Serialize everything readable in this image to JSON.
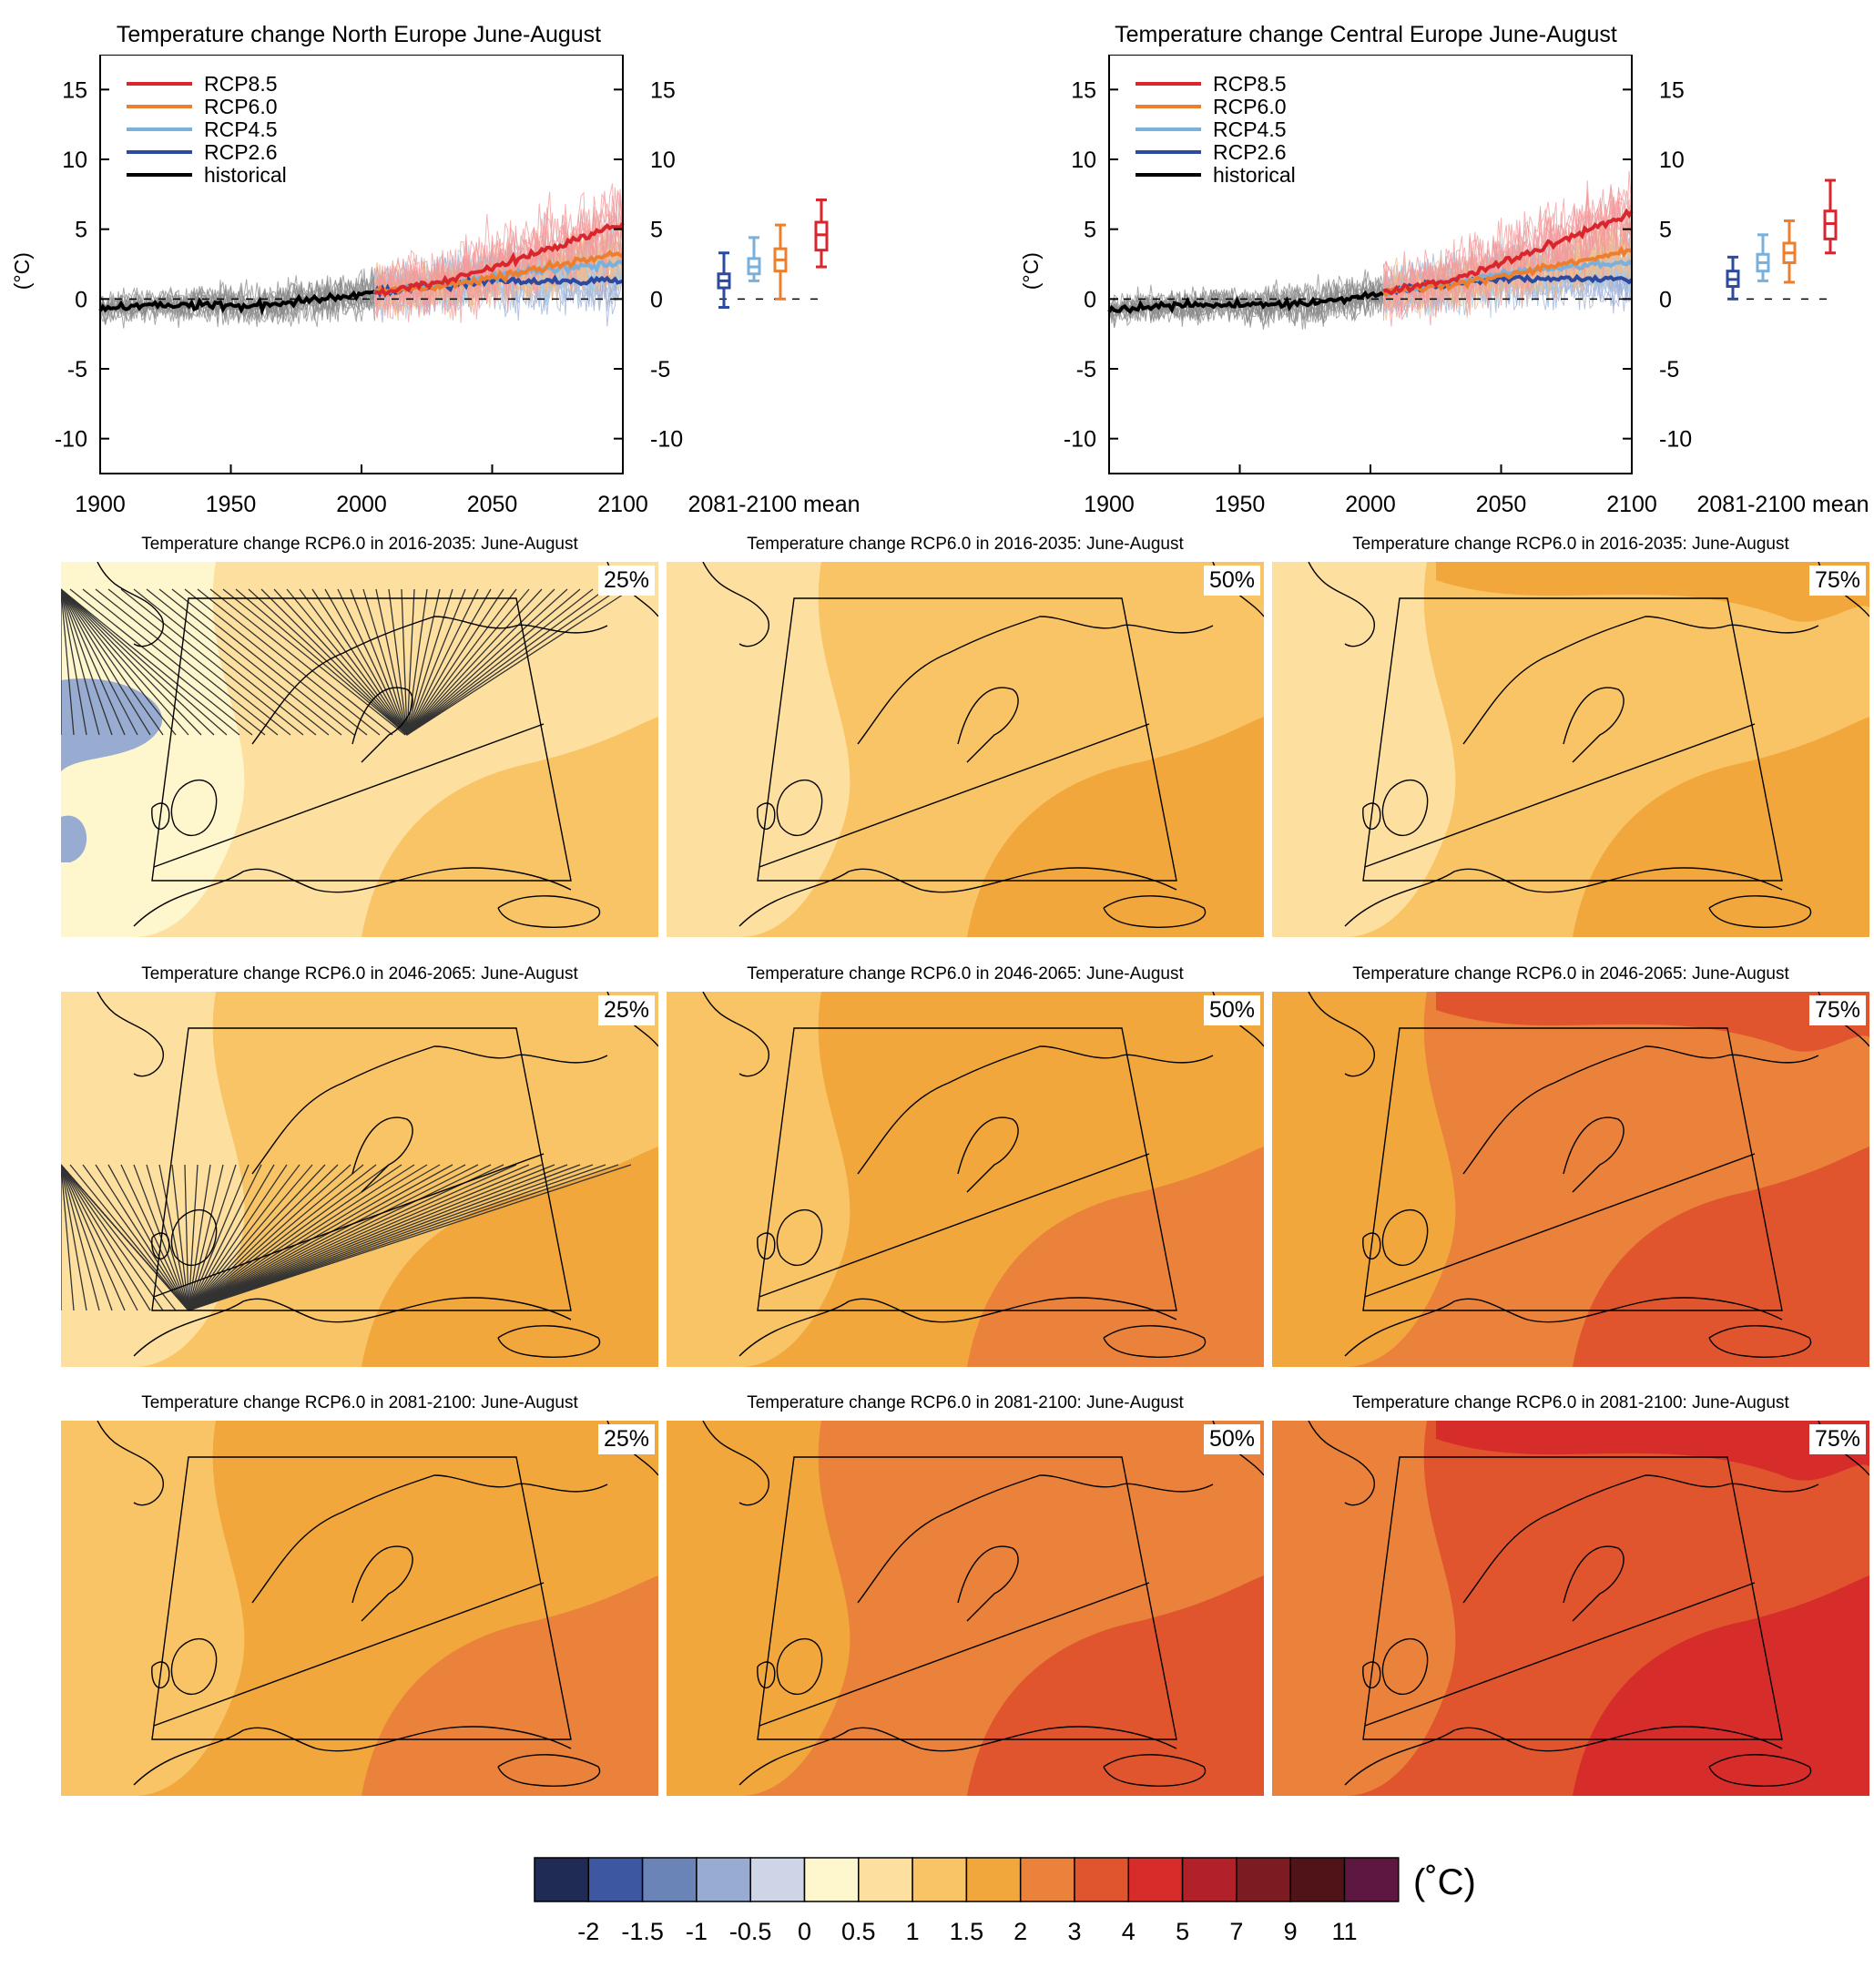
{
  "timeseries": [
    {
      "title": "Temperature change North Europe June-August",
      "ylabel": "(°C)",
      "mean_label": "2081-2100 mean",
      "yticks": [
        "15",
        "10",
        "5",
        "0",
        "-5",
        "-10"
      ],
      "xticks": [
        "1900",
        "1950",
        "2000",
        "2050",
        "2100"
      ],
      "legend": [
        "RCP8.5",
        "RCP6.0",
        "RCP4.5",
        "RCP2.6",
        "historical"
      ]
    },
    {
      "title": "Temperature change Central Europe June-August",
      "ylabel": "(°C)",
      "mean_label": "2081-2100 mean",
      "yticks": [
        "15",
        "10",
        "5",
        "0",
        "-5",
        "-10"
      ],
      "xticks": [
        "1900",
        "1950",
        "2000",
        "2050",
        "2100"
      ],
      "legend": [
        "RCP8.5",
        "RCP6.0",
        "RCP4.5",
        "RCP2.6",
        "historical"
      ]
    }
  ],
  "maps": {
    "titles": [
      "Temperature change RCP6.0 in 2016-2035: June-August",
      "Temperature change RCP6.0 in 2046-2065: June-August",
      "Temperature change RCP6.0 in 2081-2100: June-August"
    ],
    "percentiles": [
      "25%",
      "50%",
      "75%"
    ]
  },
  "colorbar": {
    "unit": "(˚C)",
    "labels": [
      "-2",
      "-1.5",
      "-1",
      "-0.5",
      "0",
      "0.5",
      "1",
      "1.5",
      "2",
      "3",
      "4",
      "5",
      "7",
      "9",
      "11"
    ],
    "colors": [
      "#1f2a55",
      "#3d58a0",
      "#6a84b8",
      "#98acd2",
      "#cdd5e6",
      "#fef6cc",
      "#fde0a0",
      "#f9c465",
      "#f1a73c",
      "#ea823b",
      "#e0552d",
      "#d62d2b",
      "#b2212a",
      "#7d1b22",
      "#501418",
      "#5e1741"
    ]
  },
  "chart_data": [
    {
      "type": "line",
      "title": "Temperature change North Europe June-August",
      "ylabel": "(°C)",
      "xlim": [
        1900,
        2100
      ],
      "ylim": [
        -12.5,
        17.5
      ],
      "series": [
        {
          "name": "historical",
          "color": "#000000",
          "x": [
            1900,
            1920,
            1940,
            1960,
            1980,
            2000,
            2005
          ],
          "values": [
            -0.7,
            -0.4,
            -0.4,
            -0.5,
            -0.1,
            0.3,
            0.5
          ]
        },
        {
          "name": "RCP2.6",
          "color": "#2b4aa0",
          "x": [
            2005,
            2030,
            2050,
            2075,
            2100
          ],
          "values": [
            0.5,
            1.0,
            1.3,
            1.3,
            1.3
          ]
        },
        {
          "name": "RCP4.5",
          "color": "#7ab0dc",
          "x": [
            2005,
            2030,
            2050,
            2075,
            2100
          ],
          "values": [
            0.5,
            1.0,
            1.6,
            2.2,
            2.5
          ]
        },
        {
          "name": "RCP6.0",
          "color": "#ec7f2e",
          "x": [
            2005,
            2030,
            2050,
            2075,
            2100
          ],
          "values": [
            0.5,
            0.9,
            1.5,
            2.4,
            3.2
          ]
        },
        {
          "name": "RCP8.5",
          "color": "#d8262c",
          "x": [
            2005,
            2030,
            2050,
            2075,
            2100
          ],
          "values": [
            0.5,
            1.2,
            2.3,
            3.8,
            5.4
          ]
        }
      ],
      "boxes_2081_2100": [
        {
          "name": "RCP2.6",
          "min": -0.6,
          "q1": 0.8,
          "median": 1.3,
          "q3": 1.8,
          "max": 3.3
        },
        {
          "name": "RCP4.5",
          "min": 1.3,
          "q1": 1.8,
          "median": 2.3,
          "q3": 2.9,
          "max": 4.4
        },
        {
          "name": "RCP6.0",
          "min": 0.0,
          "q1": 2.0,
          "median": 2.8,
          "q3": 3.6,
          "max": 5.3
        },
        {
          "name": "RCP8.5",
          "min": 2.3,
          "q1": 3.5,
          "median": 4.6,
          "q3": 5.5,
          "max": 7.1
        }
      ]
    },
    {
      "type": "line",
      "title": "Temperature change Central Europe June-August",
      "ylabel": "(°C)",
      "xlim": [
        1900,
        2100
      ],
      "ylim": [
        -12.5,
        17.5
      ],
      "series": [
        {
          "name": "historical",
          "color": "#000000",
          "x": [
            1900,
            1920,
            1940,
            1960,
            1980,
            2000,
            2005
          ],
          "values": [
            -0.8,
            -0.5,
            -0.4,
            -0.4,
            -0.3,
            0.3,
            0.5
          ]
        },
        {
          "name": "RCP2.6",
          "color": "#2b4aa0",
          "x": [
            2005,
            2030,
            2050,
            2075,
            2100
          ],
          "values": [
            0.5,
            1.1,
            1.4,
            1.4,
            1.4
          ]
        },
        {
          "name": "RCP4.5",
          "color": "#7ab0dc",
          "x": [
            2005,
            2030,
            2050,
            2075,
            2100
          ],
          "values": [
            0.5,
            1.1,
            1.8,
            2.3,
            2.6
          ]
        },
        {
          "name": "RCP6.0",
          "color": "#ec7f2e",
          "x": [
            2005,
            2030,
            2050,
            2075,
            2100
          ],
          "values": [
            0.5,
            1.0,
            1.6,
            2.6,
            3.5
          ]
        },
        {
          "name": "RCP8.5",
          "color": "#d8262c",
          "x": [
            2005,
            2030,
            2050,
            2075,
            2100
          ],
          "values": [
            0.5,
            1.3,
            2.6,
            4.3,
            6.2
          ]
        }
      ],
      "boxes_2081_2100": [
        {
          "name": "RCP2.6",
          "min": 0.0,
          "q1": 0.9,
          "median": 1.4,
          "q3": 2.0,
          "max": 3.0
        },
        {
          "name": "RCP4.5",
          "min": 1.3,
          "q1": 2.0,
          "median": 2.6,
          "q3": 3.2,
          "max": 4.6
        },
        {
          "name": "RCP6.0",
          "min": 1.2,
          "q1": 2.6,
          "median": 3.3,
          "q3": 4.0,
          "max": 5.6
        },
        {
          "name": "RCP8.5",
          "min": 3.3,
          "q1": 4.3,
          "median": 5.4,
          "q3": 6.3,
          "max": 8.5
        }
      ]
    }
  ]
}
